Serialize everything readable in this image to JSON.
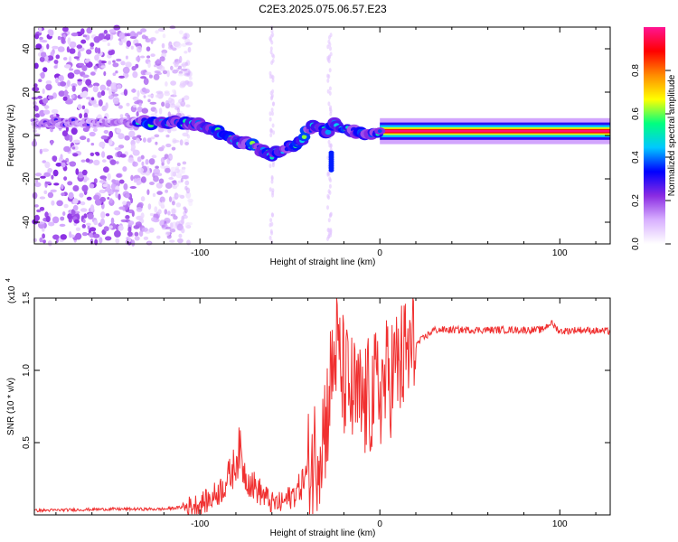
{
  "title": "C2E3.2025.075.06.57.E23",
  "chart_data": [
    {
      "type": "heatmap",
      "xlabel": "Height of straight line (km)",
      "ylabel": "Frequency (Hz)",
      "xlim": [
        -192,
        128
      ],
      "ylim": [
        -50,
        50
      ],
      "xticks": [
        -100,
        0,
        100
      ],
      "yticks": [
        -40,
        -20,
        0,
        20,
        40
      ],
      "colorbar": {
        "label": "Normalized spectral amplitude",
        "range": [
          0,
          1
        ],
        "ticks": [
          0.0,
          0.2,
          0.4,
          0.6,
          0.8
        ],
        "colors": [
          "#ffffff",
          "#d8b0ff",
          "#8a2be2",
          "#0000ff",
          "#00c8ff",
          "#00ff7f",
          "#ffff00",
          "#ff8c00",
          "#ff0000",
          "#ff1493"
        ]
      },
      "ridge": {
        "x": [
          -192,
          -150,
          -130,
          -110,
          -100,
          -90,
          -80,
          -70,
          -60,
          -50,
          -45,
          -40,
          -35,
          -30,
          -25,
          -20,
          -15,
          -10,
          -5,
          0,
          128
        ],
        "y": [
          6,
          6,
          6,
          6,
          5,
          2,
          -2,
          -5,
          -9,
          -5,
          -4,
          3,
          4,
          2,
          5,
          3,
          2,
          1,
          0,
          2,
          2
        ]
      },
      "noise_extent": [
        -192,
        -105
      ]
    },
    {
      "type": "line",
      "xlabel": "Height of straight line (km)",
      "ylabel": "SNR (10 * v/v)",
      "ylabel_scale": "(x10",
      "ylabel_exponent": "4",
      "xlim": [
        -192,
        128
      ],
      "ylim": [
        0,
        1.5
      ],
      "xticks": [
        -100,
        0,
        100
      ],
      "yticks": [
        0.5,
        1.0,
        1.5
      ],
      "ytick_labels": [
        "0.5",
        "1.0",
        "1.5"
      ],
      "color": "#f03030",
      "series": {
        "x": [
          -192,
          -150,
          -120,
          -105,
          -95,
          -88,
          -82,
          -78,
          -75,
          -70,
          -65,
          -60,
          -55,
          -50,
          -45,
          -40,
          -35,
          -30,
          -27,
          -24,
          -22,
          -20,
          -17,
          -14,
          -10,
          -6,
          -2,
          2,
          8,
          15,
          22,
          30,
          50,
          70,
          90,
          95,
          100,
          110,
          128
        ],
        "y": [
          0.03,
          0.04,
          0.04,
          0.06,
          0.1,
          0.18,
          0.3,
          0.45,
          0.28,
          0.2,
          0.14,
          0.08,
          0.08,
          0.12,
          0.18,
          0.3,
          0.45,
          0.65,
          0.95,
          1.2,
          1.0,
          0.95,
          0.85,
          0.8,
          0.75,
          0.8,
          0.85,
          0.9,
          1.0,
          1.1,
          1.2,
          1.28,
          1.28,
          1.28,
          1.28,
          1.33,
          1.27,
          1.28,
          1.27
        ]
      }
    }
  ]
}
